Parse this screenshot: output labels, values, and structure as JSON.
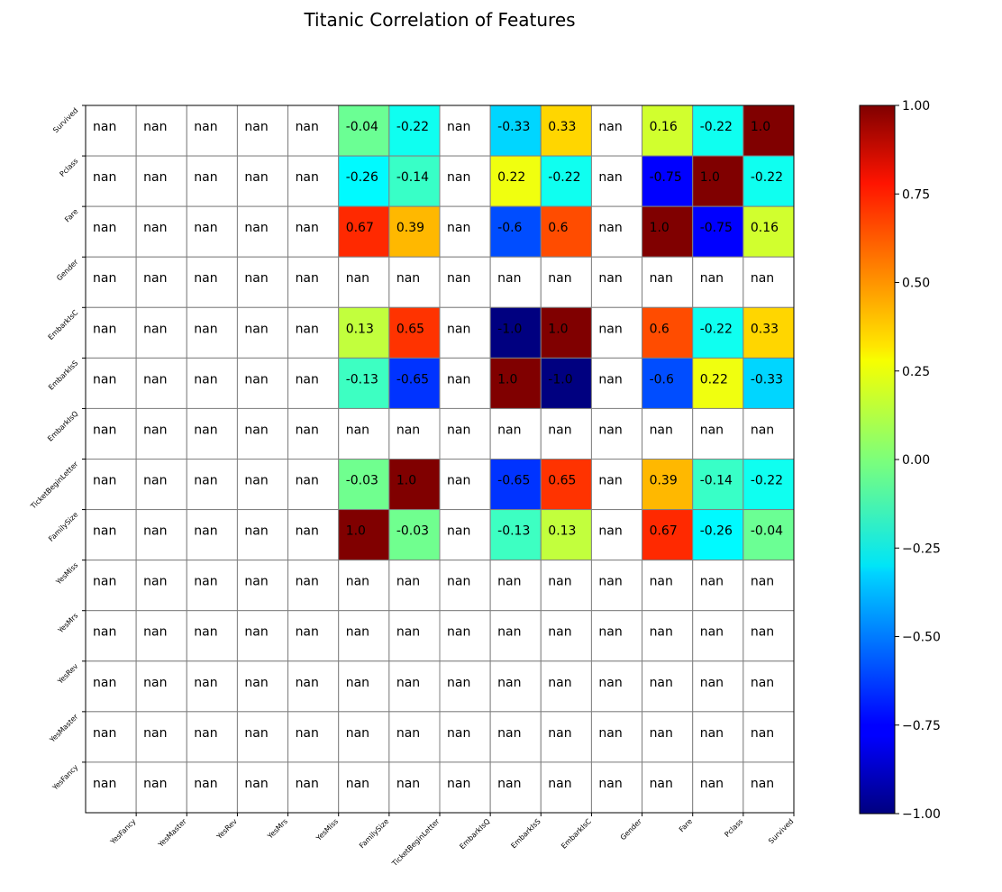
{
  "chart_data": {
    "type": "heatmap",
    "title": "Titanic Correlation of Features",
    "colormap": "jet",
    "nan_color": "#ffffff",
    "value_range": [
      -1.0,
      1.0
    ],
    "x_labels": [
      "YesFancy",
      "YesMaster",
      "YesRev",
      "YesMrs",
      "YesMiss",
      "FamilySize",
      "TicketBeginLetter",
      "EmbarkIsQ",
      "EmbarkIsS",
      "EmbarkIsC",
      "Gender",
      "Fare",
      "Pclass",
      "Survived"
    ],
    "y_labels": [
      "Survived",
      "Pclass",
      "Fare",
      "Gender",
      "EmbarkIsC",
      "EmbarkIsS",
      "EmbarkIsQ",
      "TicketBeginLetter",
      "FamilySize",
      "YesMiss",
      "YesMrs",
      "YesRev",
      "YesMaster",
      "YesFancy"
    ],
    "cells": [
      [
        "nan",
        "nan",
        "nan",
        "nan",
        "nan",
        "-0.04",
        "-0.22",
        "nan",
        "-0.33",
        "0.33",
        "nan",
        "0.16",
        "-0.22",
        "1.0"
      ],
      [
        "nan",
        "nan",
        "nan",
        "nan",
        "nan",
        "-0.26",
        "-0.14",
        "nan",
        "0.22",
        "-0.22",
        "nan",
        "-0.75",
        "1.0",
        "-0.22"
      ],
      [
        "nan",
        "nan",
        "nan",
        "nan",
        "nan",
        "0.67",
        "0.39",
        "nan",
        "-0.6",
        "0.6",
        "nan",
        "1.0",
        "-0.75",
        "0.16"
      ],
      [
        "nan",
        "nan",
        "nan",
        "nan",
        "nan",
        "nan",
        "nan",
        "nan",
        "nan",
        "nan",
        "nan",
        "nan",
        "nan",
        "nan"
      ],
      [
        "nan",
        "nan",
        "nan",
        "nan",
        "nan",
        "0.13",
        "0.65",
        "nan",
        "-1.0",
        "1.0",
        "nan",
        "0.6",
        "-0.22",
        "0.33"
      ],
      [
        "nan",
        "nan",
        "nan",
        "nan",
        "nan",
        "-0.13",
        "-0.65",
        "nan",
        "1.0",
        "-1.0",
        "nan",
        "-0.6",
        "0.22",
        "-0.33"
      ],
      [
        "nan",
        "nan",
        "nan",
        "nan",
        "nan",
        "nan",
        "nan",
        "nan",
        "nan",
        "nan",
        "nan",
        "nan",
        "nan",
        "nan"
      ],
      [
        "nan",
        "nan",
        "nan",
        "nan",
        "nan",
        "-0.03",
        "1.0",
        "nan",
        "-0.65",
        "0.65",
        "nan",
        "0.39",
        "-0.14",
        "-0.22"
      ],
      [
        "nan",
        "nan",
        "nan",
        "nan",
        "nan",
        "1.0",
        "-0.03",
        "nan",
        "-0.13",
        "0.13",
        "nan",
        "0.67",
        "-0.26",
        "-0.04"
      ],
      [
        "nan",
        "nan",
        "nan",
        "nan",
        "nan",
        "nan",
        "nan",
        "nan",
        "nan",
        "nan",
        "nan",
        "nan",
        "nan",
        "nan"
      ],
      [
        "nan",
        "nan",
        "nan",
        "nan",
        "nan",
        "nan",
        "nan",
        "nan",
        "nan",
        "nan",
        "nan",
        "nan",
        "nan",
        "nan"
      ],
      [
        "nan",
        "nan",
        "nan",
        "nan",
        "nan",
        "nan",
        "nan",
        "nan",
        "nan",
        "nan",
        "nan",
        "nan",
        "nan",
        "nan"
      ],
      [
        "nan",
        "nan",
        "nan",
        "nan",
        "nan",
        "nan",
        "nan",
        "nan",
        "nan",
        "nan",
        "nan",
        "nan",
        "nan",
        "nan"
      ],
      [
        "nan",
        "nan",
        "nan",
        "nan",
        "nan",
        "nan",
        "nan",
        "nan",
        "nan",
        "nan",
        "nan",
        "nan",
        "nan",
        "nan"
      ]
    ],
    "colorbar": {
      "ticks": [
        "1.00",
        "0.75",
        "0.50",
        "0.25",
        "0.00",
        "−0.25",
        "−0.50",
        "−0.75",
        "−1.00"
      ],
      "tick_values": [
        1.0,
        0.75,
        0.5,
        0.25,
        0.0,
        -0.25,
        -0.5,
        -0.75,
        -1.0
      ]
    },
    "grid": true
  }
}
